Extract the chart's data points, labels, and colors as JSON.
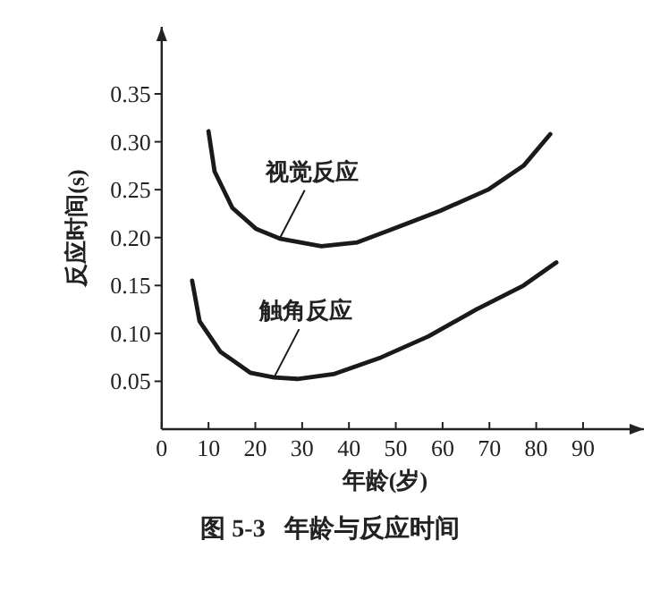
{
  "chart_data": {
    "type": "line",
    "xlabel": "年龄(岁)",
    "ylabel": "反应时间(s)",
    "annotations": [
      "图 5-3   年龄与反应时间"
    ],
    "xlim": [
      0,
      103
    ],
    "ylim": [
      0,
      0.42
    ],
    "xticks": [
      0,
      10,
      20,
      30,
      40,
      50,
      60,
      70,
      80,
      90
    ],
    "yticks": [
      {
        "value": 0.05,
        "label": "0.05"
      },
      {
        "value": 0.1,
        "label": "0.10"
      },
      {
        "value": 0.15,
        "label": "0.15"
      },
      {
        "value": 0.2,
        "label": "0.20"
      },
      {
        "value": 0.25,
        "label": "0.25"
      },
      {
        "value": 0.3,
        "label": "0.30"
      },
      {
        "value": 0.35,
        "label": "0.35"
      }
    ],
    "grid": false,
    "marker": "none",
    "line_style": "solid",
    "series": [
      {
        "name": "视觉反应",
        "color": "#1a1a1a",
        "x": [
          10,
          11.3,
          15.1,
          20.2,
          25.2,
          34.1,
          41.8,
          49.4,
          59.5,
          69.7,
          77.3,
          83.0
        ],
        "values": [
          0.311,
          0.269,
          0.231,
          0.209,
          0.199,
          0.191,
          0.195,
          0.209,
          0.228,
          0.25,
          0.275,
          0.308
        ]
      },
      {
        "name": "触角反应",
        "color": "#1a1a1a",
        "x": [
          6.5,
          8.1,
          12.5,
          18.9,
          24,
          29,
          36.7,
          46.9,
          57,
          67.2,
          77.3,
          84.3
        ],
        "values": [
          0.155,
          0.1125,
          0.081,
          0.059,
          0.054,
          0.0525,
          0.0575,
          0.075,
          0.097,
          0.125,
          0.15,
          0.174
        ]
      }
    ]
  }
}
